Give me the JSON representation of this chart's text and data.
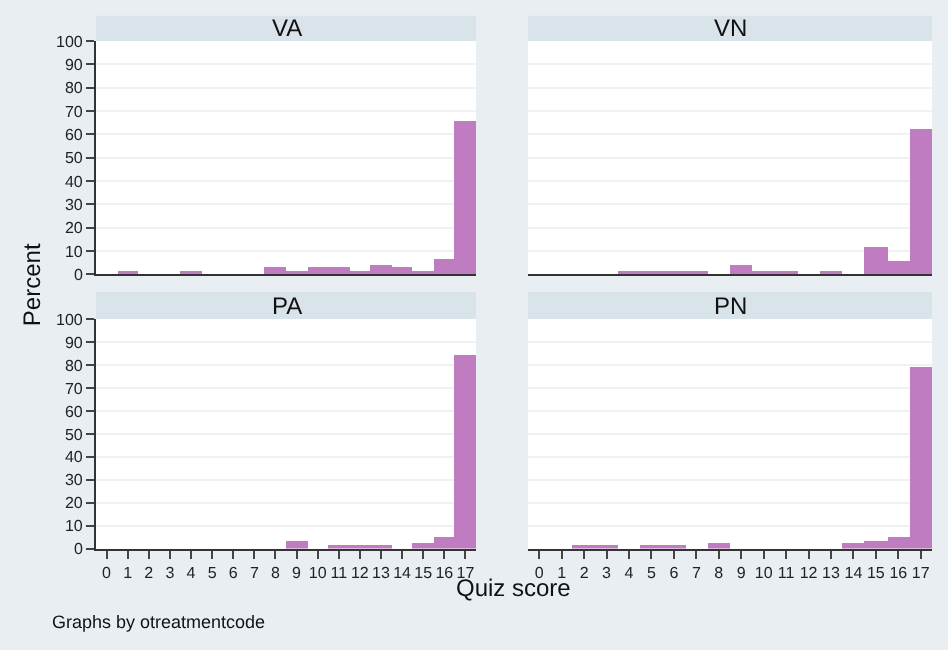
{
  "chart_data": [
    {
      "type": "histogram",
      "title": "VA",
      "ylabel": "Percent",
      "xlabel": "Quiz score",
      "annotations": [
        "Graphs by otreatmentcode"
      ],
      "bins": [
        -0.5,
        0.5,
        1.5,
        2.5,
        3.5,
        4.5,
        5.5,
        6.5,
        7.5,
        8.5,
        9.5,
        10.5,
        11.5,
        12.5,
        13.5,
        14.5,
        15.5,
        16.5,
        17.5
      ],
      "values": [
        0,
        1,
        0,
        0,
        1,
        0,
        0,
        0,
        3,
        1,
        3,
        3,
        1,
        4,
        3,
        1,
        7,
        66
      ],
      "color": "#c07cc0",
      "xlim": [
        -0.5,
        17.5
      ],
      "xticks": [
        0,
        1,
        2,
        3,
        4,
        5,
        6,
        7,
        8,
        9,
        10,
        11,
        12,
        13,
        14,
        15,
        16,
        17
      ],
      "ylim": [
        0,
        100
      ],
      "yticks": [
        0,
        10,
        20,
        30,
        40,
        50,
        60,
        70,
        80,
        90,
        100
      ],
      "grid": "y",
      "tick_labels": "y"
    },
    {
      "type": "histogram",
      "title": "VN",
      "bins": [
        -0.5,
        0.5,
        1.5,
        2.5,
        3.5,
        4.5,
        5.5,
        6.5,
        7.5,
        8.5,
        9.5,
        10.5,
        11.5,
        12.5,
        13.5,
        14.5,
        15.5,
        16.5,
        17.5
      ],
      "values": [
        0,
        0,
        0,
        0,
        1,
        1,
        1,
        1,
        0,
        4,
        1,
        1,
        0,
        1,
        0,
        12,
        6,
        62
      ],
      "color": "#c07cc0",
      "xlim": [
        -0.5,
        17.5
      ],
      "xticks": [
        0,
        1,
        2,
        3,
        4,
        5,
        6,
        7,
        8,
        9,
        10,
        11,
        12,
        13,
        14,
        15,
        16,
        17
      ],
      "ylim": [
        0,
        100
      ],
      "yticks": [
        0,
        10,
        20,
        30,
        40,
        50,
        60,
        70,
        80,
        90,
        100
      ],
      "grid": "y",
      "tick_labels": false
    },
    {
      "type": "histogram",
      "title": "PA",
      "bins": [
        -0.5,
        0.5,
        1.5,
        2.5,
        3.5,
        4.5,
        5.5,
        6.5,
        7.5,
        8.5,
        9.5,
        10.5,
        11.5,
        12.5,
        13.5,
        14.5,
        15.5,
        16.5,
        17.5
      ],
      "values": [
        0,
        0,
        0,
        0,
        0,
        0,
        0,
        0,
        0,
        3,
        0,
        1,
        1,
        1,
        0,
        2,
        5,
        84
      ],
      "color": "#c07cc0",
      "xlim": [
        -0.5,
        17.5
      ],
      "xticks": [
        0,
        1,
        2,
        3,
        4,
        5,
        6,
        7,
        8,
        9,
        10,
        11,
        12,
        13,
        14,
        15,
        16,
        17
      ],
      "ylim": [
        0,
        100
      ],
      "yticks": [
        0,
        10,
        20,
        30,
        40,
        50,
        60,
        70,
        80,
        90,
        100
      ],
      "grid": "y"
    },
    {
      "type": "histogram",
      "title": "PN",
      "bins": [
        -0.5,
        0.5,
        1.5,
        2.5,
        3.5,
        4.5,
        5.5,
        6.5,
        7.5,
        8.5,
        9.5,
        10.5,
        11.5,
        12.5,
        13.5,
        14.5,
        15.5,
        16.5,
        17.5
      ],
      "values": [
        0,
        0,
        1,
        1,
        0,
        1,
        1,
        0,
        2,
        0,
        0,
        0,
        0,
        0,
        2,
        3,
        5,
        79
      ],
      "color": "#c07cc0",
      "xlim": [
        -0.5,
        17.5
      ],
      "xticks": [
        0,
        1,
        2,
        3,
        4,
        5,
        6,
        7,
        8,
        9,
        10,
        11,
        12,
        13,
        14,
        15,
        16,
        17
      ],
      "ylim": [
        0,
        100
      ],
      "yticks": [
        0,
        10,
        20,
        30,
        40,
        50,
        60,
        70,
        80,
        90,
        100
      ],
      "grid": "y",
      "tick_labels": "x"
    }
  ]
}
